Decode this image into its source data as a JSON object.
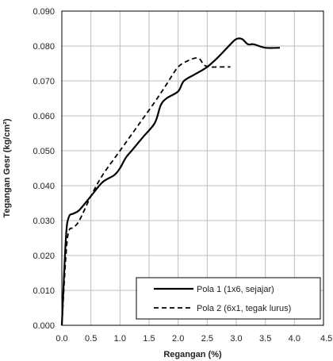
{
  "chart_data": {
    "type": "line",
    "xlabel": "Regangan (%)",
    "ylabel": "Tegangan Gesr (kg/cm²)",
    "xlim": [
      0,
      4.5
    ],
    "ylim": [
      0,
      0.09
    ],
    "xticks": [
      "0.0",
      "0.5",
      "1.0",
      "1.5",
      "2.0",
      "2.5",
      "3.0",
      "3.5",
      "4.0",
      "4.5"
    ],
    "yticks": [
      "0.000",
      "0.010",
      "0.020",
      "0.030",
      "0.040",
      "0.050",
      "0.060",
      "0.070",
      "0.080",
      "0.090"
    ],
    "grid": true,
    "legend_position": "bottom-right",
    "series": [
      {
        "name": "Pola 1 (1x6, sejajar)",
        "style": "solid",
        "color": "#000000",
        "x": [
          0.0,
          0.07,
          0.12,
          0.2,
          0.3,
          0.5,
          0.7,
          0.9,
          1.0,
          1.1,
          1.2,
          1.4,
          1.6,
          1.7,
          1.8,
          2.0,
          2.1,
          2.3,
          2.5,
          2.7,
          2.9,
          3.0,
          3.1,
          3.2,
          3.3,
          3.5,
          3.75
        ],
        "y": [
          0.0,
          0.025,
          0.031,
          0.032,
          0.033,
          0.037,
          0.041,
          0.043,
          0.045,
          0.048,
          0.05,
          0.054,
          0.058,
          0.063,
          0.065,
          0.067,
          0.07,
          0.072,
          0.074,
          0.077,
          0.0805,
          0.082,
          0.082,
          0.0805,
          0.0805,
          0.0795,
          0.0795
        ]
      },
      {
        "name": "Pola 2 (6x1, tegak lurus)",
        "style": "dashed",
        "color": "#000000",
        "x": [
          0.0,
          0.07,
          0.12,
          0.2,
          0.3,
          0.5,
          0.7,
          1.0,
          1.3,
          1.6,
          1.8,
          2.0,
          2.2,
          2.35,
          2.45,
          2.55,
          2.7,
          2.9
        ],
        "y": [
          0.0,
          0.02,
          0.027,
          0.028,
          0.03,
          0.037,
          0.043,
          0.05,
          0.057,
          0.064,
          0.069,
          0.074,
          0.076,
          0.0765,
          0.0745,
          0.074,
          0.074,
          0.074
        ]
      }
    ]
  }
}
